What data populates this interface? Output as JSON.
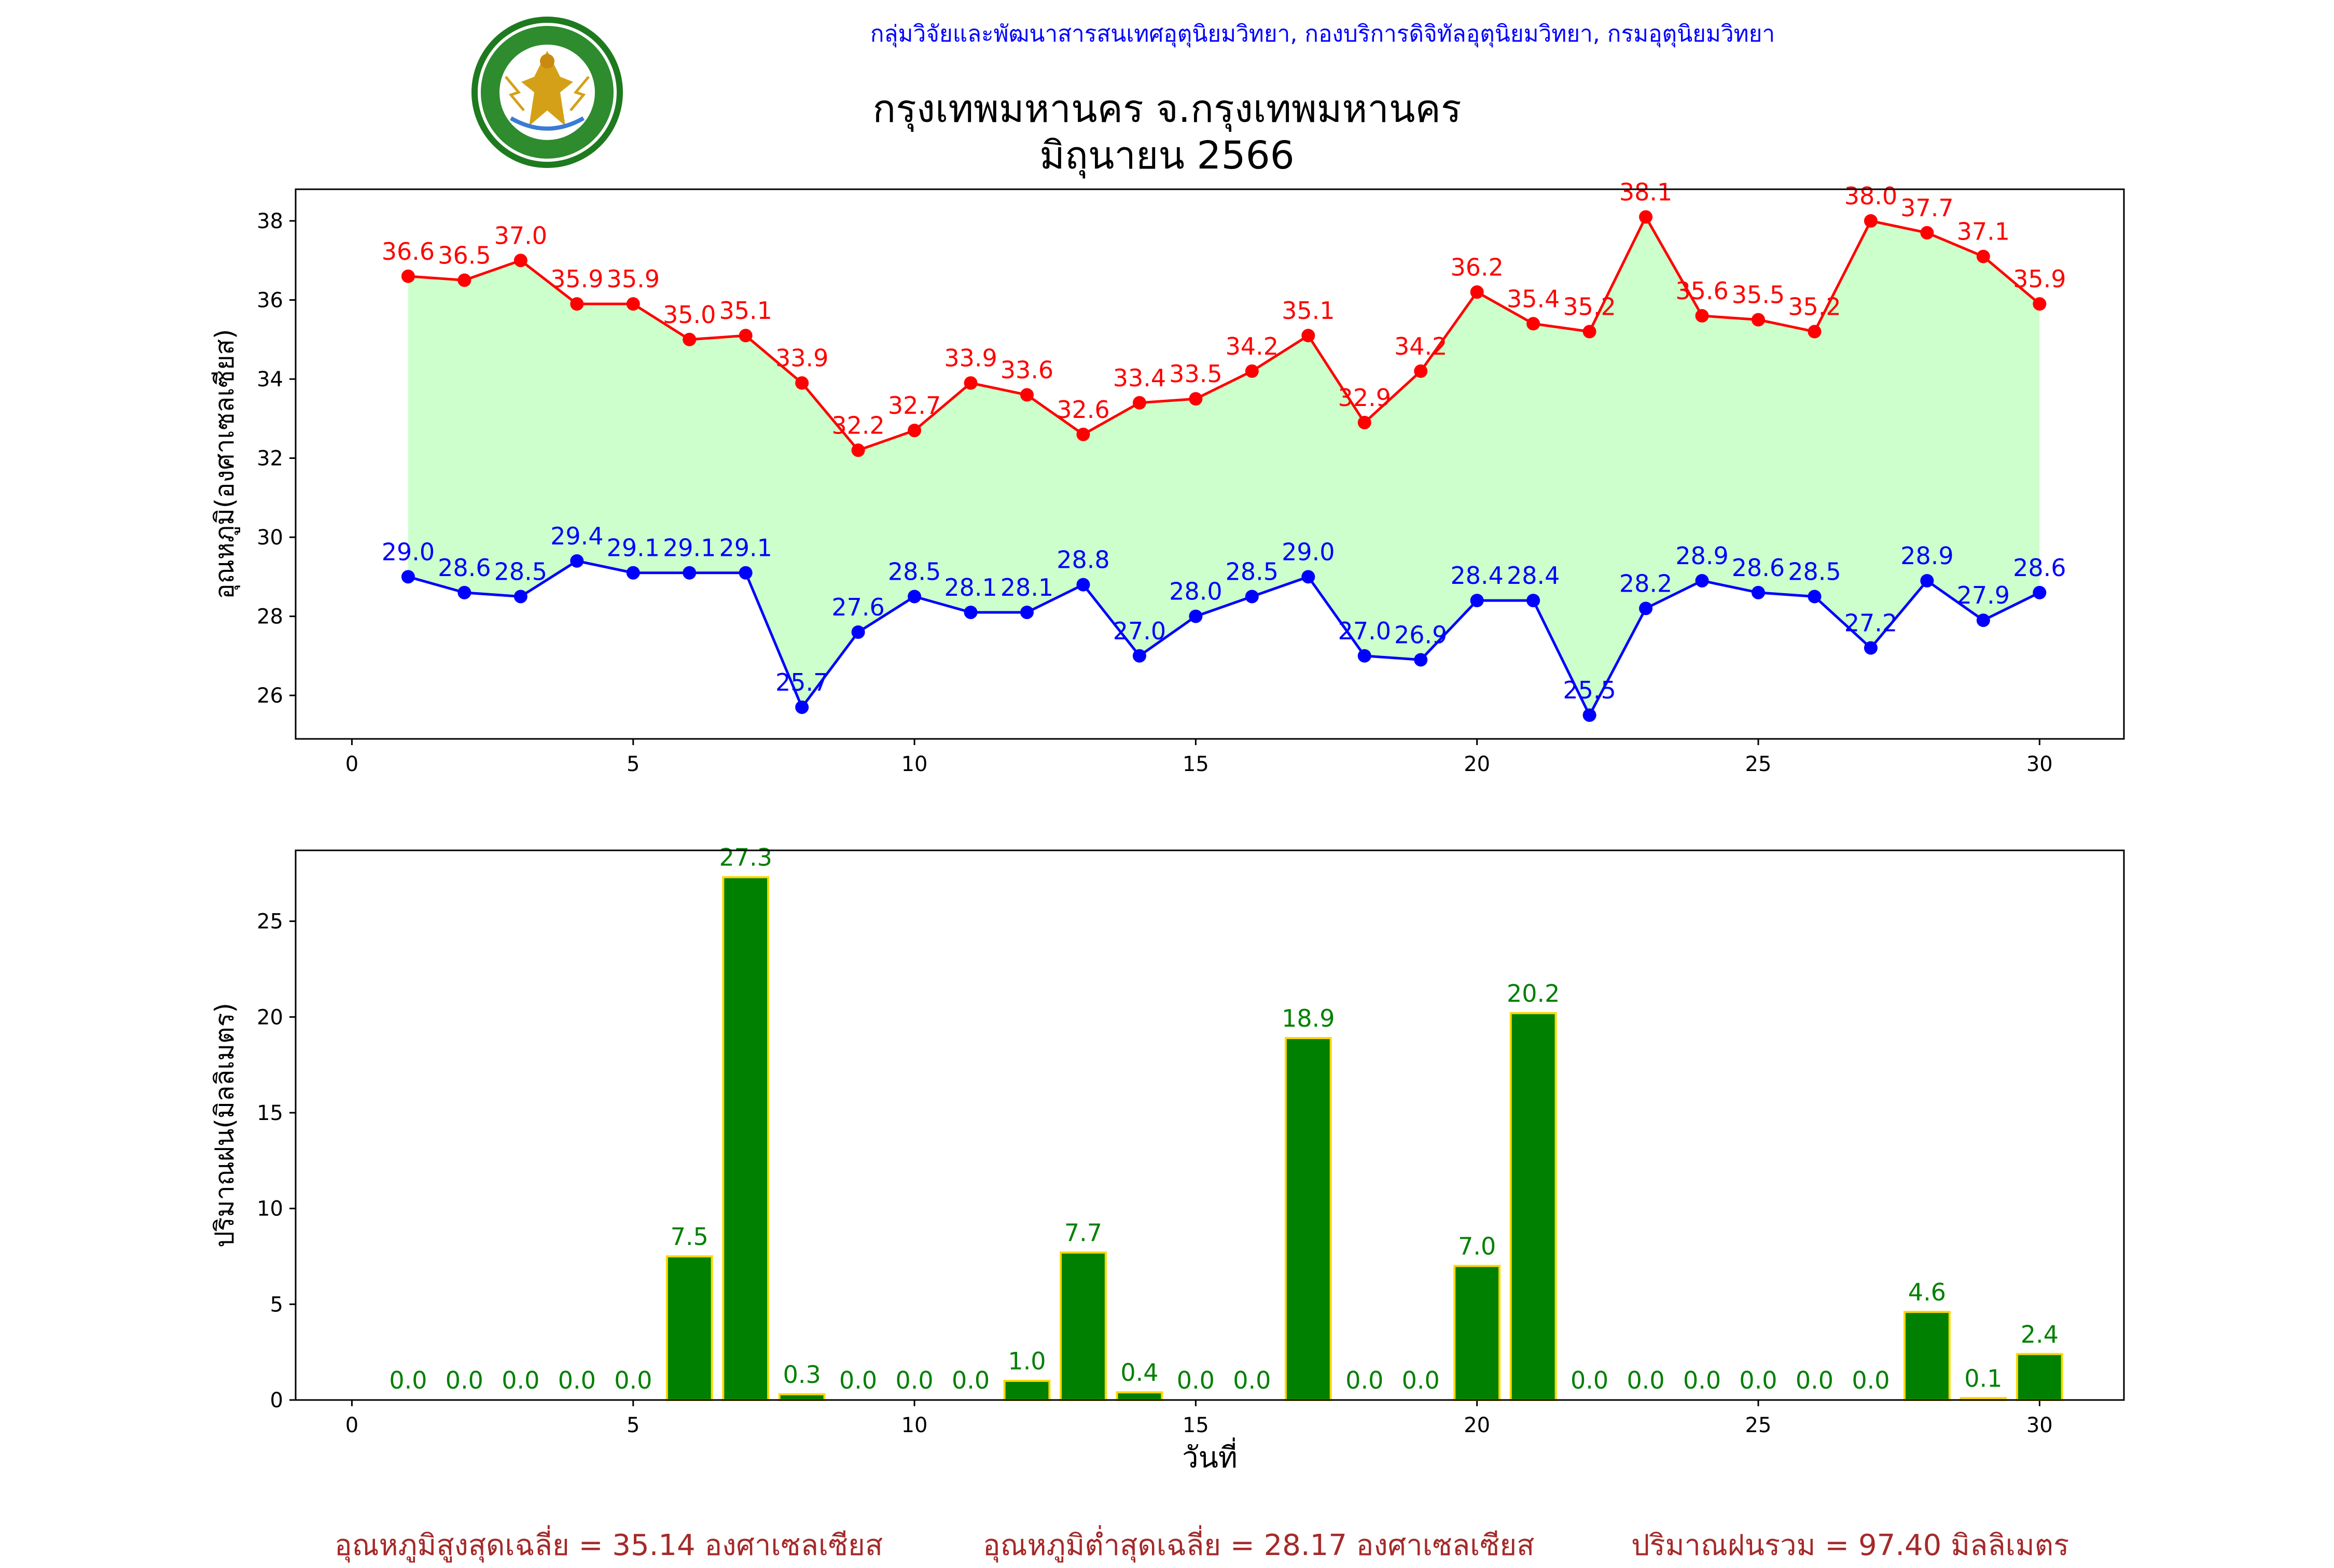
{
  "header": {
    "source": "กลุ่มวิจัยและพัฒนาสารสนเทศอุตุนิยมวิทยา, กองบริการดิจิทัลอุตุนิยมวิทยา, กรมอุตุนิยมวิทยา",
    "title_line1": "กรุงเทพมหานคร จ.กรุงเทพมหานคร",
    "title_line2": "มิถุนายน 2566",
    "logo_text": "กรมอุตุนิยมวิทยา METEOROLOGICAL DEPARTMENT"
  },
  "colors": {
    "max": "#ff0000",
    "min": "#0000ff",
    "fill": "#ccffcc",
    "bar": "#008000",
    "bar_edge": "#ffd700",
    "bar_label": "#008000",
    "summary": "#a52a2a"
  },
  "chart_data": [
    {
      "type": "line",
      "ylabel": "อุณหภูมิ(องศาเซลเซียส)",
      "xlabel": "",
      "xlim": [
        -1,
        31.5
      ],
      "ylim": [
        24.9,
        38.8
      ],
      "xticks": [
        0,
        5,
        10,
        15,
        20,
        25,
        30
      ],
      "yticks": [
        26,
        28,
        30,
        32,
        34,
        36,
        38
      ],
      "fill_between": true,
      "x": [
        1,
        2,
        3,
        4,
        5,
        6,
        7,
        8,
        9,
        10,
        11,
        12,
        13,
        14,
        15,
        16,
        17,
        18,
        19,
        20,
        21,
        22,
        23,
        24,
        25,
        26,
        27,
        28,
        29,
        30
      ],
      "series": [
        {
          "key": "max",
          "values": [
            36.6,
            36.5,
            37.0,
            35.9,
            35.9,
            35.0,
            35.1,
            33.9,
            32.2,
            32.7,
            33.9,
            33.6,
            32.6,
            33.4,
            33.5,
            34.2,
            35.1,
            32.9,
            34.2,
            36.2,
            35.4,
            35.2,
            38.1,
            35.6,
            35.5,
            35.2,
            38.0,
            37.7,
            37.1,
            35.9
          ]
        },
        {
          "key": "min",
          "values": [
            29.0,
            28.6,
            28.5,
            29.4,
            29.1,
            29.1,
            29.1,
            25.7,
            27.6,
            28.5,
            28.1,
            28.1,
            28.8,
            27.0,
            28.0,
            28.5,
            29.0,
            27.0,
            26.9,
            28.4,
            28.4,
            25.5,
            28.2,
            28.9,
            28.6,
            28.5,
            27.2,
            28.9,
            27.9,
            28.6
          ]
        }
      ]
    },
    {
      "type": "bar",
      "ylabel": "ปริมาณฝน(มิลลิเมตร)",
      "xlabel": "วันที่",
      "xlim": [
        -1,
        31.5
      ],
      "ylim": [
        0,
        28.7
      ],
      "xticks": [
        0,
        5,
        10,
        15,
        20,
        25,
        30
      ],
      "yticks": [
        0,
        5,
        10,
        15,
        20,
        25
      ],
      "x": [
        1,
        2,
        3,
        4,
        5,
        6,
        7,
        8,
        9,
        10,
        11,
        12,
        13,
        14,
        15,
        16,
        17,
        18,
        19,
        20,
        21,
        22,
        23,
        24,
        25,
        26,
        27,
        28,
        29,
        30
      ],
      "values": [
        0.0,
        0.0,
        0.0,
        0.0,
        0.0,
        7.5,
        27.3,
        0.3,
        0.0,
        0.0,
        0.0,
        1.0,
        7.7,
        0.4,
        0.0,
        0.0,
        18.9,
        0.0,
        0.0,
        7.0,
        20.2,
        0.0,
        0.0,
        0.0,
        0.0,
        0.0,
        0.0,
        4.6,
        0.1,
        2.4
      ]
    }
  ],
  "summary": {
    "max_avg": "อุณหภูมิสูงสุดเฉลี่ย = 35.14 องศาเซลเซียส",
    "min_avg": "อุณหภูมิต่ำสุดเฉลี่ย = 28.17 องศาเซลเซียส",
    "rain_total": "ปริมาณฝนรวม = 97.40 มิลลิเมตร"
  }
}
